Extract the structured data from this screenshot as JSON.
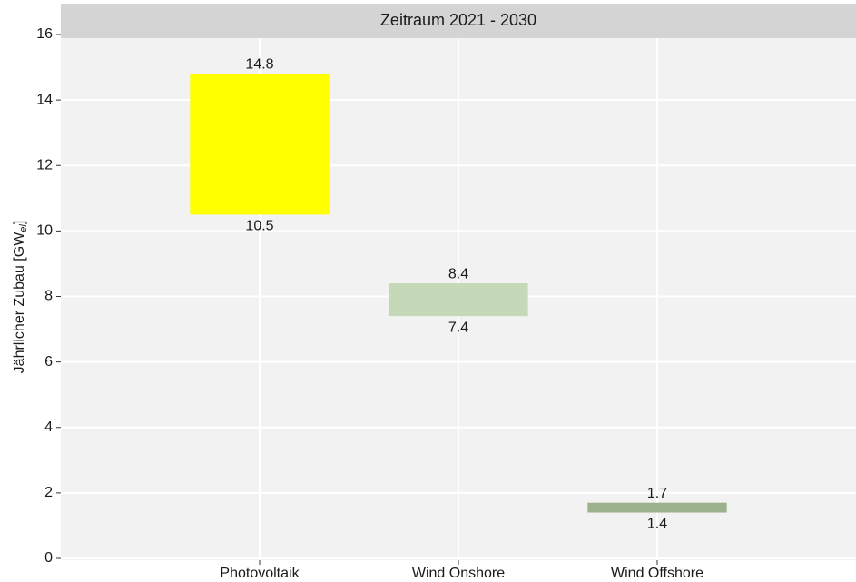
{
  "chart_data": {
    "type": "range_bar",
    "strip_title": "Zeitraum 2021 - 2030",
    "ylabel": {
      "text": "Jährlicher Zubau [GW",
      "subscript": "el",
      "suffix": "]"
    },
    "categories": [
      "Photovoltaik",
      "Wind Onshore",
      "Wind Offshore"
    ],
    "lows": [
      10.5,
      7.4,
      1.4
    ],
    "highs": [
      14.8,
      8.4,
      1.7
    ],
    "colors": [
      "#ffff00",
      "#c5d9b8",
      "#9bb08c"
    ],
    "ylim": [
      0,
      16
    ],
    "yticks": [
      0,
      2,
      4,
      6,
      8,
      10,
      12,
      14,
      16
    ],
    "grid": true
  }
}
